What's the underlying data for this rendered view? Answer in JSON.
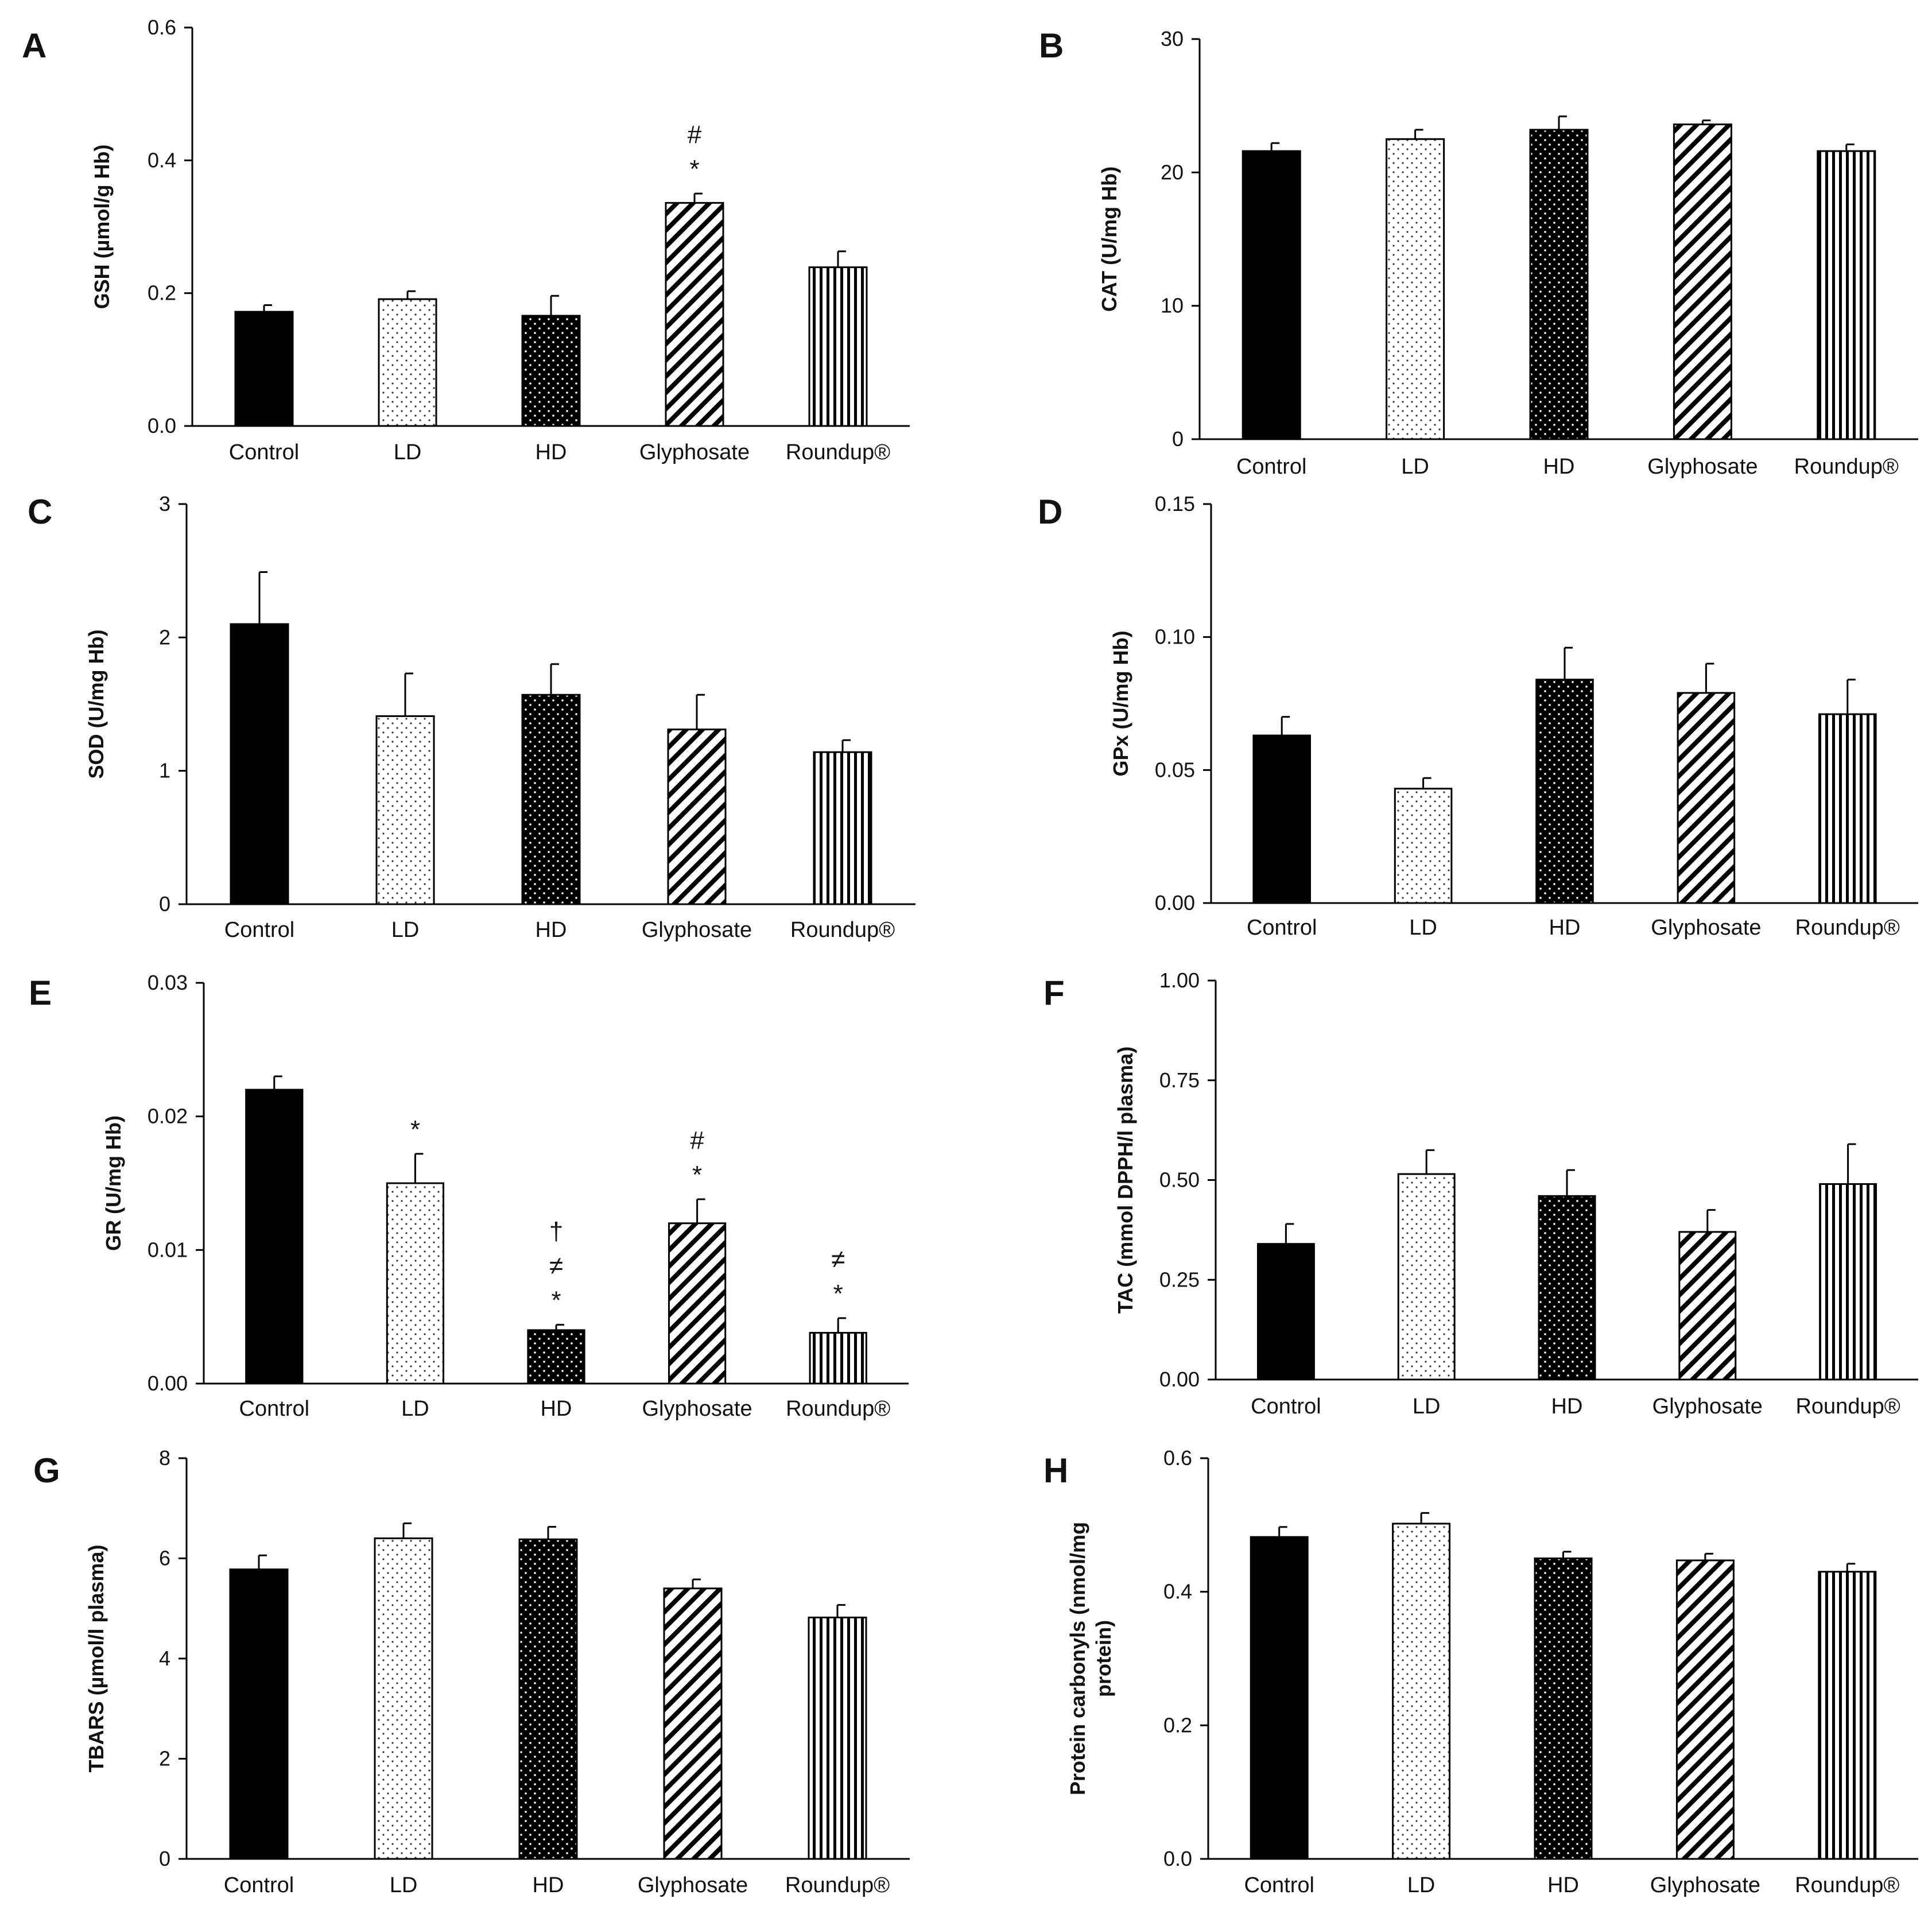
{
  "chart_data": [
    {
      "panel": "A",
      "type": "bar",
      "ylabel": "GSH  (µmol/g Hb)",
      "categories": [
        "Control",
        "LD",
        "HD",
        "Glyphosate",
        "Roundup®"
      ],
      "values": [
        0.172,
        0.191,
        0.166,
        0.336,
        0.239
      ],
      "errors": [
        0.01,
        0.012,
        0.03,
        0.014,
        0.024
      ],
      "ylim": [
        0,
        0.6
      ],
      "yticks": [
        "0.0",
        "0.2",
        "0.4",
        "0.6"
      ],
      "annotations": [
        [],
        [],
        [],
        [
          "*",
          "#"
        ],
        []
      ]
    },
    {
      "panel": "B",
      "type": "bar",
      "ylabel": "CAT (U/mg Hb)",
      "categories": [
        "Control",
        "LD",
        "HD",
        "Glyphosate",
        "Roundup®"
      ],
      "values": [
        21.6,
        22.5,
        23.2,
        23.6,
        21.6
      ],
      "errors": [
        0.6,
        0.7,
        1.0,
        0.3,
        0.5
      ],
      "ylim": [
        0,
        30
      ],
      "yticks": [
        "0",
        "10",
        "20",
        "30"
      ],
      "annotations": [
        [],
        [],
        [],
        [],
        []
      ]
    },
    {
      "panel": "C",
      "type": "bar",
      "ylabel": "SOD (U/mg Hb)",
      "categories": [
        "Control",
        "LD",
        "HD",
        "Glyphosate",
        "Roundup®"
      ],
      "values": [
        2.1,
        1.41,
        1.57,
        1.31,
        1.14
      ],
      "errors": [
        0.39,
        0.32,
        0.23,
        0.26,
        0.09
      ],
      "ylim": [
        0,
        3
      ],
      "yticks": [
        "0",
        "1",
        "2",
        "3"
      ],
      "annotations": [
        [],
        [],
        [],
        [],
        []
      ]
    },
    {
      "panel": "D",
      "type": "bar",
      "ylabel": "GPx  (U/mg Hb)",
      "categories": [
        "Control",
        "LD",
        "HD",
        "Glyphosate",
        "Roundup®"
      ],
      "values": [
        0.063,
        0.043,
        0.084,
        0.079,
        0.071
      ],
      "errors": [
        0.007,
        0.004,
        0.012,
        0.011,
        0.013
      ],
      "ylim": [
        0,
        0.15
      ],
      "yticks": [
        "0.00",
        "0.05",
        "0.10",
        "0.15"
      ],
      "annotations": [
        [],
        [],
        [],
        [],
        []
      ]
    },
    {
      "panel": "E",
      "type": "bar",
      "ylabel": "GR (U/mg Hb)",
      "categories": [
        "Control",
        "LD",
        "HD",
        "Glyphosate",
        "Roundup®"
      ],
      "values": [
        0.022,
        0.015,
        0.004,
        0.012,
        0.0038
      ],
      "errors": [
        0.001,
        0.0022,
        0.0004,
        0.0018,
        0.0011
      ],
      "ylim": [
        0,
        0.03
      ],
      "yticks": [
        "0.00",
        "0.01",
        "0.02",
        "0.03"
      ],
      "annotations": [
        [],
        [
          "*"
        ],
        [
          "*",
          "≠",
          "†"
        ],
        [
          "*",
          "#"
        ],
        [
          "*",
          "≠"
        ]
      ]
    },
    {
      "panel": "F",
      "type": "bar",
      "ylabel": "TAC (mmol DPPH/l plasma)",
      "categories": [
        "Control",
        "LD",
        "HD",
        "Glyphosate",
        "Roundup®"
      ],
      "values": [
        0.34,
        0.515,
        0.46,
        0.37,
        0.49
      ],
      "errors": [
        0.05,
        0.06,
        0.065,
        0.055,
        0.1
      ],
      "ylim": [
        0,
        1.0
      ],
      "yticks": [
        "0.00",
        "0.25",
        "0.50",
        "0.75",
        "1.00"
      ],
      "annotations": [
        [],
        [],
        [],
        [],
        []
      ]
    },
    {
      "panel": "G",
      "type": "bar",
      "ylabel": "TBARS (µmol/l plasma)",
      "categories": [
        "Control",
        "LD",
        "HD",
        "Glyphosate",
        "Roundup®"
      ],
      "values": [
        5.78,
        6.4,
        6.38,
        5.4,
        4.82
      ],
      "errors": [
        0.28,
        0.3,
        0.25,
        0.18,
        0.25
      ],
      "ylim": [
        0,
        8
      ],
      "yticks": [
        "0",
        "2",
        "4",
        "6",
        "8"
      ],
      "annotations": [
        [],
        [],
        [],
        [],
        []
      ]
    },
    {
      "panel": "H",
      "type": "bar",
      "ylabel": "Protein carbonyls (nmol/mg",
      "ylabel2": "protein)",
      "categories": [
        "Control",
        "LD",
        "HD",
        "Glyphosate",
        "Roundup®"
      ],
      "values": [
        0.482,
        0.502,
        0.45,
        0.447,
        0.43
      ],
      "errors": [
        0.015,
        0.016,
        0.01,
        0.01,
        0.012
      ],
      "ylim": [
        0,
        0.6
      ],
      "yticks": [
        "0.0",
        "0.2",
        "0.4",
        "0.6"
      ],
      "annotations": [
        [],
        [],
        [],
        [],
        []
      ]
    }
  ]
}
